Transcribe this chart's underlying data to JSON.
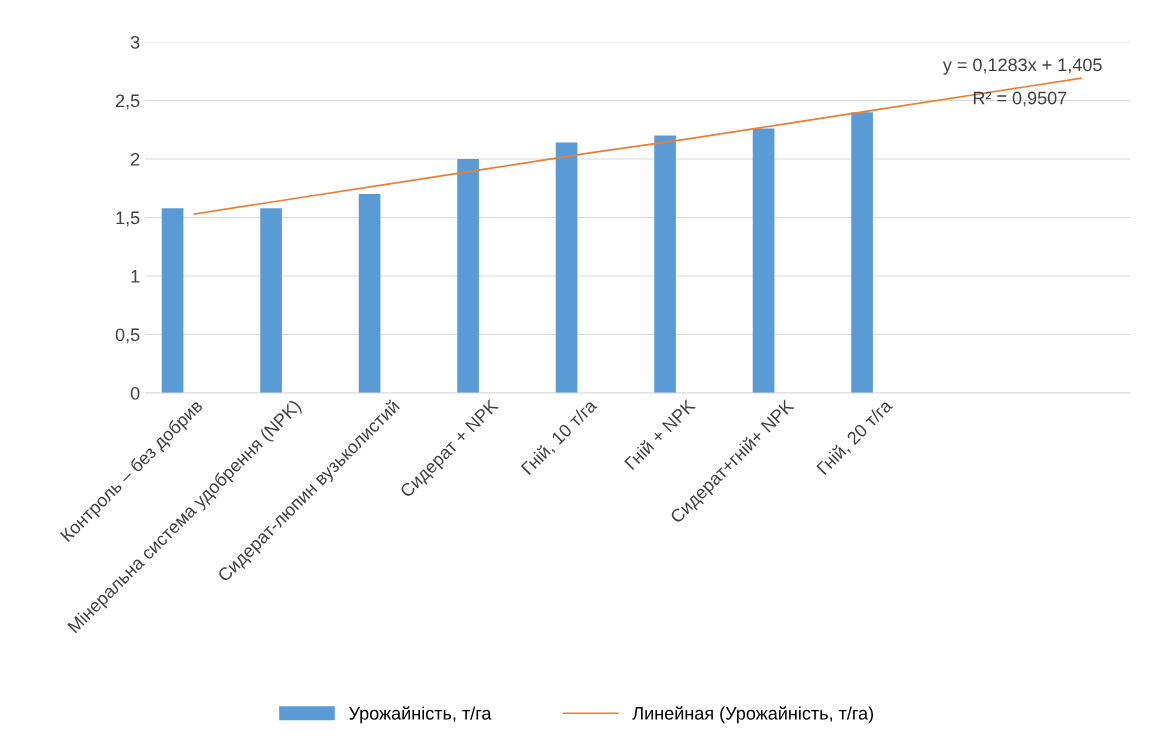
{
  "chart_data": {
    "type": "bar",
    "categories": [
      "Контроль – без добрив",
      "Мінеральна система удобрення (NPK)",
      "Сидерат-люпин вузьколистий",
      "Сидерат + NPK",
      "Гній, 10 т/га",
      "Гній + NPK",
      "Сидерат+гній+ NPK",
      "Гній, 20 т/га",
      null,
      null
    ],
    "series": [
      {
        "name": "Урожайність, т/га",
        "color": "#5b9bd5",
        "values": [
          1.58,
          1.58,
          1.7,
          2.0,
          2.14,
          2.2,
          2.26,
          2.4,
          null,
          null
        ]
      },
      {
        "name": "Линейная (Урожайність, т/га)",
        "type": "line",
        "color": "#ed7d31",
        "values": [
          1.53,
          1.66,
          1.79,
          1.92,
          2.05,
          2.17,
          2.3,
          2.43,
          2.56,
          2.69
        ]
      }
    ],
    "ylim": [
      0,
      3
    ],
    "yticks": [
      0,
      {
        "value": 0.5,
        "label": "0,5"
      },
      1,
      {
        "value": 1.5,
        "label": "1,5"
      },
      2,
      {
        "value": 2.5,
        "label": "2,5"
      },
      3
    ],
    "grid": "y",
    "legend": "bottom",
    "annotations": [
      "y = 0,1283x + 1,405",
      "R² = 0,9507"
    ]
  }
}
